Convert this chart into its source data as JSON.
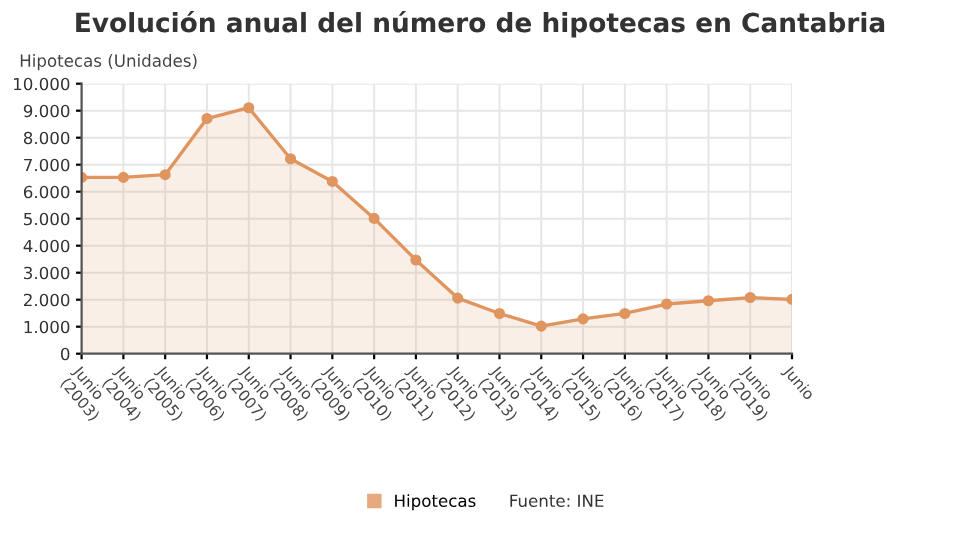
{
  "chart_data": {
    "type": "area",
    "title": "Evolución anual del número de hipotecas en Cantabria",
    "ylabel": "Hipotecas (Unidades)",
    "categories": [
      "Junio\n(2003)",
      "Junio\n(2004)",
      "Junio\n(2005)",
      "Junio\n(2006)",
      "Junio\n(2007)",
      "Junio\n(2008)",
      "Junio\n(2009)",
      "Junio\n(2010)",
      "Junio\n(2011)",
      "Junio\n(2012)",
      "Junio\n(2013)",
      "Junio\n(2014)",
      "Junio\n(2015)",
      "Junio\n(2016)",
      "Junio\n(2017)",
      "Junio\n(2018)",
      "Junio\n(2019)",
      "Junio"
    ],
    "series": [
      {
        "name": "Hipotecas",
        "color": "#e0955f",
        "values": [
          6530,
          6530,
          6630,
          8710,
          9110,
          7220,
          6380,
          5010,
          3470,
          2060,
          1490,
          1020,
          1290,
          1490,
          1840,
          1960,
          2080,
          2010
        ]
      }
    ],
    "ylim": [
      0,
      10000
    ],
    "yticks": [
      {
        "value": 0,
        "label": "0"
      },
      {
        "value": 1000,
        "label": "1.000"
      },
      {
        "value": 2000,
        "label": "2.000"
      },
      {
        "value": 3000,
        "label": "3.000"
      },
      {
        "value": 4000,
        "label": "4.000"
      },
      {
        "value": 5000,
        "label": "5.000"
      },
      {
        "value": 6000,
        "label": "6.000"
      },
      {
        "value": 7000,
        "label": "7.000"
      },
      {
        "value": 8000,
        "label": "8.000"
      },
      {
        "value": 9000,
        "label": "9.000"
      },
      {
        "value": 10000,
        "label": "10.000"
      }
    ],
    "grid": true,
    "legend": "bottom",
    "marker": "circle",
    "line_style": "solid",
    "annotations": [
      "Fuente: INE"
    ]
  }
}
